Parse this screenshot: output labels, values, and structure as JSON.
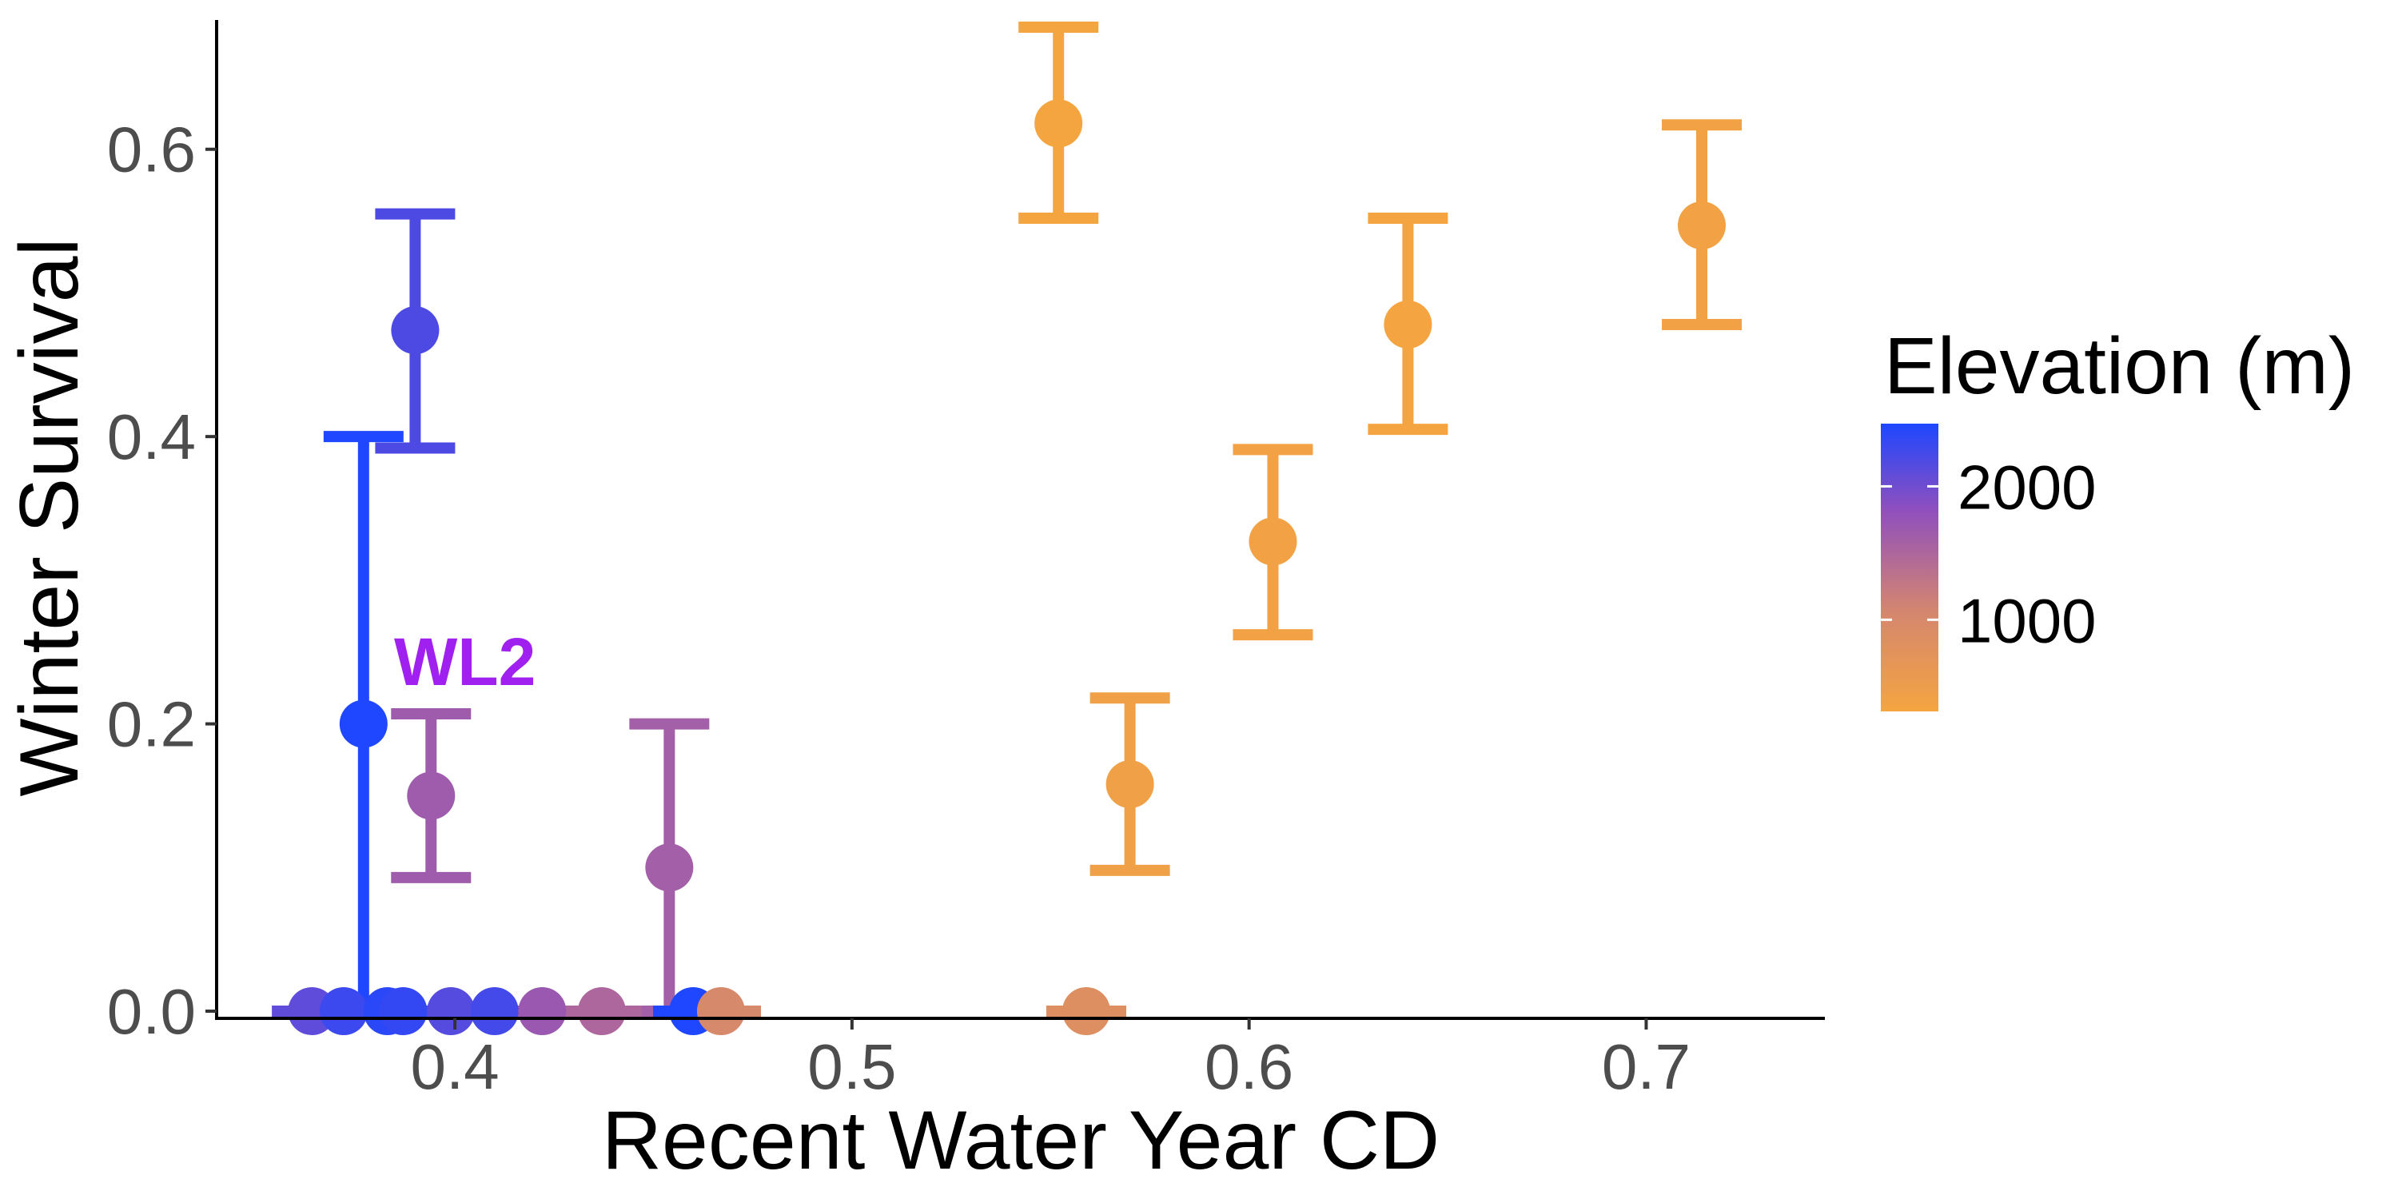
{
  "chart_data": {
    "type": "scatter",
    "xlabel": "Recent Water Year CD",
    "ylabel": "Winter Survival",
    "xlim": [
      0.34,
      0.745
    ],
    "ylim": [
      -0.005,
      0.69
    ],
    "x_ticks": [
      0.4,
      0.5,
      0.6,
      0.7
    ],
    "x_tick_labels": [
      "0.4",
      "0.5",
      "0.6",
      "0.7"
    ],
    "y_ticks": [
      0.0,
      0.2,
      0.4,
      0.6
    ],
    "y_tick_labels": [
      "0.0",
      "0.2",
      "0.4",
      "0.6"
    ],
    "grid": false,
    "legend": {
      "title": "Elevation (m)",
      "placement": "right",
      "type": "colorbar",
      "range": [
        313,
        2470
      ],
      "breaks": [
        2000,
        1000
      ],
      "break_labels": [
        "2000",
        "1000"
      ],
      "low_color": "#f5a540",
      "high_color": "#1e47ff"
    },
    "annotations": [
      {
        "text": "WL2",
        "x": 0.377,
        "y": 0.2,
        "color": "#a020f0"
      }
    ],
    "points": [
      {
        "x": 0.552,
        "y": 0.618,
        "ymin": 0.552,
        "ymax": 0.685,
        "elev": 313
      },
      {
        "x": 0.714,
        "y": 0.547,
        "ymin": 0.478,
        "ymax": 0.617,
        "elev": 380
      },
      {
        "x": 0.64,
        "y": 0.478,
        "ymin": 0.405,
        "ymax": 0.552,
        "elev": 330
      },
      {
        "x": 0.606,
        "y": 0.327,
        "ymin": 0.262,
        "ymax": 0.391,
        "elev": 380
      },
      {
        "x": 0.57,
        "y": 0.158,
        "ymin": 0.098,
        "ymax": 0.218,
        "elev": 420
      },
      {
        "x": 0.39,
        "y": 0.474,
        "ymin": 0.392,
        "ymax": 0.555,
        "elev": 2200
      },
      {
        "x": 0.377,
        "y": 0.2,
        "ymin": 0.0,
        "ymax": 0.4,
        "elev": 2470
      },
      {
        "x": 0.394,
        "y": 0.15,
        "ymin": 0.093,
        "ymax": 0.207,
        "elev": 1650
      },
      {
        "x": 0.454,
        "y": 0.1,
        "ymin": 0.0,
        "ymax": 0.2,
        "elev": 1600
      },
      {
        "x": 0.364,
        "y": 0.0,
        "ymin": 0.0,
        "ymax": 0.0,
        "elev": 2100
      },
      {
        "x": 0.372,
        "y": 0.0,
        "ymin": 0.0,
        "ymax": 0.0,
        "elev": 2300
      },
      {
        "x": 0.383,
        "y": 0.0,
        "ymin": 0.0,
        "ymax": 0.0,
        "elev": 2400
      },
      {
        "x": 0.387,
        "y": 0.0,
        "ymin": 0.0,
        "ymax": 0.0,
        "elev": 2350
      },
      {
        "x": 0.399,
        "y": 0.0,
        "ymin": 0.0,
        "ymax": 0.0,
        "elev": 2150
      },
      {
        "x": 0.41,
        "y": 0.0,
        "ymin": 0.0,
        "ymax": 0.0,
        "elev": 2250
      },
      {
        "x": 0.422,
        "y": 0.0,
        "ymin": 0.0,
        "ymax": 0.0,
        "elev": 1700
      },
      {
        "x": 0.437,
        "y": 0.0,
        "ymin": 0.0,
        "ymax": 0.0,
        "elev": 1500
      },
      {
        "x": 0.46,
        "y": 0.0,
        "ymin": 0.0,
        "ymax": 0.0,
        "elev": 2470
      },
      {
        "x": 0.467,
        "y": 0.0,
        "ymin": 0.0,
        "ymax": 0.0,
        "elev": 1000
      },
      {
        "x": 0.559,
        "y": 0.0,
        "ymin": 0.0,
        "ymax": 0.0,
        "elev": 850
      }
    ]
  }
}
